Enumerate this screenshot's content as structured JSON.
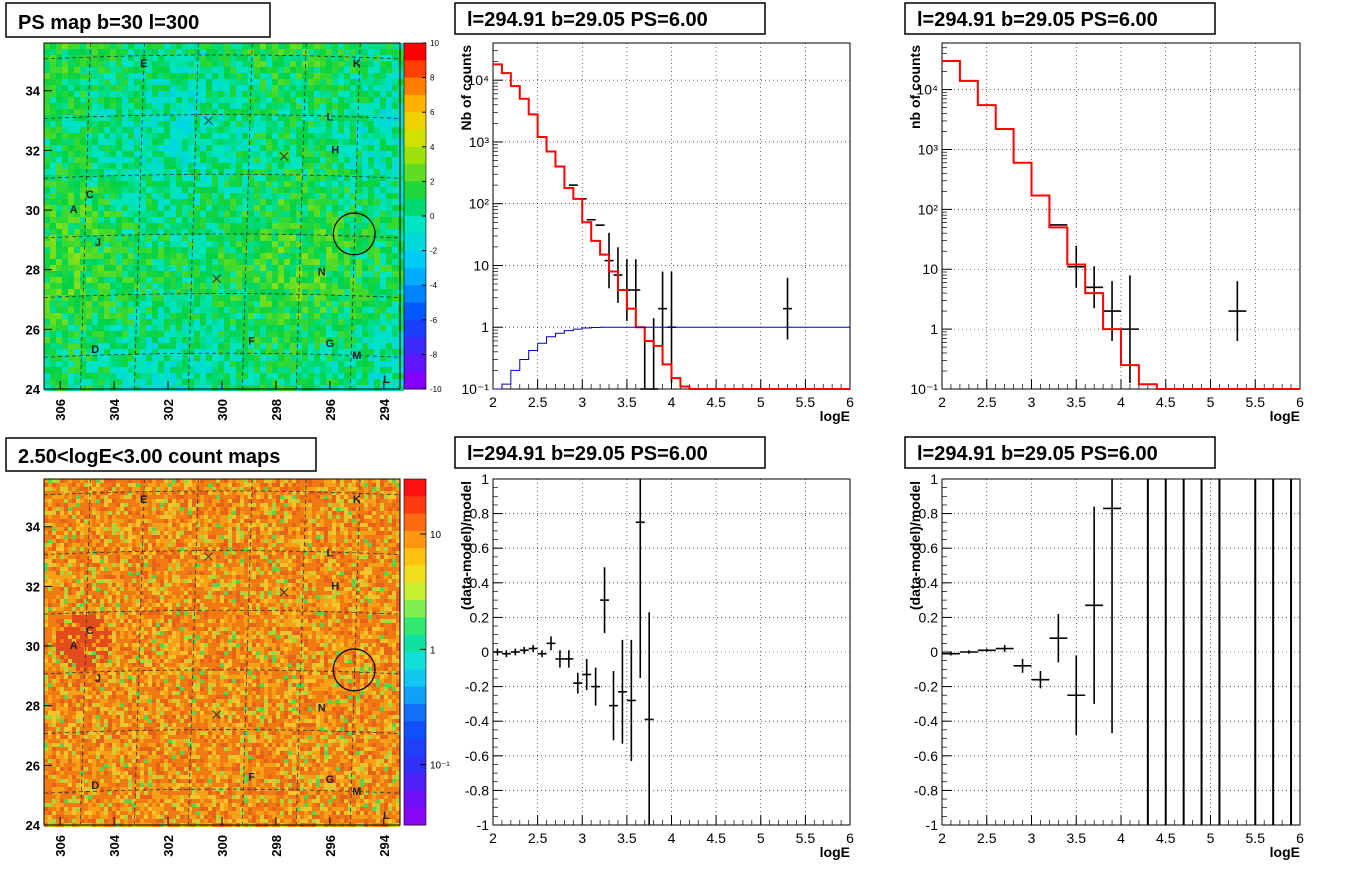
{
  "figure": {
    "background": "#ffffff",
    "colors": {
      "data": "#000000",
      "model": "#ff0000",
      "efficiency": "#0000bb",
      "grid": "#000000",
      "marker_circle": "#000000"
    },
    "icons": [
      "cross-marker-icon",
      "circle-marker-icon"
    ]
  },
  "chart_data": [
    {
      "id": "ps-map",
      "type": "heatmap",
      "title": "PS map b=30 l=300",
      "xlabel": "",
      "ylabel": "",
      "xlim": [
        306.6,
        293.4
      ],
      "ylim": [
        24,
        35.6
      ],
      "x_ticks": [
        306,
        304,
        302,
        300,
        298,
        296,
        294
      ],
      "y_ticks": [
        24,
        26,
        28,
        30,
        32,
        34
      ],
      "grid": true,
      "colorbar": {
        "scale": "linear",
        "range": [
          -10,
          10
        ],
        "ticks": [
          -10,
          -8,
          -6,
          -4,
          -2,
          0,
          2,
          4,
          6,
          8,
          10
        ]
      },
      "base_value": 0.7,
      "labels": [
        {
          "text": "E",
          "l": 302.9,
          "b": 34.8
        },
        {
          "text": "K",
          "l": 295.0,
          "b": 34.8
        },
        {
          "text": "L",
          "l": 296.0,
          "b": 33.0
        },
        {
          "text": "H",
          "l": 295.8,
          "b": 31.9
        },
        {
          "text": "C",
          "l": 304.9,
          "b": 30.4
        },
        {
          "text": "A",
          "l": 305.5,
          "b": 29.9
        },
        {
          "text": "J",
          "l": 304.6,
          "b": 28.8
        },
        {
          "text": "N",
          "l": 296.3,
          "b": 27.8
        },
        {
          "text": "D",
          "l": 304.7,
          "b": 25.2
        },
        {
          "text": "F",
          "l": 298.9,
          "b": 25.5
        },
        {
          "text": "G",
          "l": 296.0,
          "b": 25.4
        },
        {
          "text": "M",
          "l": 295.0,
          "b": 25.0
        },
        {
          "text": "L",
          "l": 293.9,
          "b": 24.2
        }
      ],
      "crosses": [
        {
          "l": 300.5,
          "b": 33.0
        },
        {
          "l": 297.7,
          "b": 31.8
        },
        {
          "l": 300.2,
          "b": 27.7
        }
      ],
      "circle": {
        "l": 295.1,
        "b": 29.2,
        "r": 0.5
      }
    },
    {
      "id": "spectrum-1",
      "type": "line",
      "title": "l=294.91 b=29.05 PS=6.00",
      "xlabel": "logE",
      "ylabel": "Nb of counts",
      "xlim": [
        2,
        6
      ],
      "yscale": "log",
      "ylim": [
        0.1,
        40000
      ],
      "x_ticks": [
        2,
        2.5,
        3,
        3.5,
        4,
        4.5,
        5,
        5.5,
        6
      ],
      "y_ticks": [
        {
          "v": 0.1,
          "t": "10⁻¹"
        },
        {
          "v": 1,
          "t": "1"
        },
        {
          "v": 10,
          "t": "10"
        },
        {
          "v": 100,
          "t": "10²"
        },
        {
          "v": 1000,
          "t": "10³"
        },
        {
          "v": 10000,
          "t": "10⁴"
        }
      ],
      "grid": true,
      "series": [
        {
          "role": "data",
          "x": [
            2.9,
            3.0,
            3.1,
            3.2,
            3.3,
            3.4,
            3.5,
            3.6,
            3.7,
            3.8,
            3.9,
            4.0,
            5.3
          ],
          "y": [
            200,
            120,
            55,
            45,
            12,
            7,
            4,
            4,
            0.1,
            0.1,
            2,
            1,
            2
          ],
          "err": [
            0,
            0,
            0,
            0,
            0.45,
            0.45,
            0.5,
            0.5,
            0,
            0,
            0.6,
            0.9,
            0.5
          ],
          "xerr": [
            0.05,
            0.05,
            0.05,
            0.05,
            0.05,
            0.05,
            0.05,
            0.05,
            0.05,
            0.05,
            0.05,
            0.05,
            0.05
          ]
        },
        {
          "role": "model",
          "edges": [
            2,
            2.1,
            2.2,
            2.3,
            2.4,
            2.5,
            2.6,
            2.7,
            2.8,
            2.9,
            3.0,
            3.1,
            3.2,
            3.3,
            3.4,
            3.5,
            3.6,
            3.7,
            3.8,
            3.9,
            4.0,
            4.1,
            4.2,
            4.3,
            4.4,
            6.0
          ],
          "y": [
            18000,
            13000,
            8000,
            5000,
            2800,
            1200,
            700,
            400,
            180,
            120,
            50,
            25,
            15,
            8,
            4,
            2,
            1,
            0.6,
            0.5,
            0.25,
            0.15,
            0.11,
            0.1,
            0.1,
            0.1
          ]
        },
        {
          "role": "efficiency",
          "edges": [
            2,
            2.1,
            2.2,
            2.3,
            2.4,
            2.5,
            2.6,
            2.7,
            2.8,
            2.9,
            3.0,
            3.1,
            3.2,
            6.0
          ],
          "y": [
            0.1,
            0.12,
            0.2,
            0.3,
            0.42,
            0.55,
            0.7,
            0.8,
            0.88,
            0.93,
            0.97,
            0.99,
            1.0
          ]
        }
      ]
    },
    {
      "id": "spectrum-2",
      "type": "line",
      "title": "l=294.91 b=29.05 PS=6.00",
      "xlabel": "logE",
      "ylabel": "nb of counts",
      "xlim": [
        2,
        6
      ],
      "yscale": "log",
      "ylim": [
        0.1,
        60000
      ],
      "x_ticks": [
        2,
        2.5,
        3,
        3.5,
        4,
        4.5,
        5,
        5.5,
        6
      ],
      "y_ticks": [
        {
          "v": 0.1,
          "t": "10⁻¹"
        },
        {
          "v": 1,
          "t": "1"
        },
        {
          "v": 10,
          "t": "10"
        },
        {
          "v": 100,
          "t": "10²"
        },
        {
          "v": 1000,
          "t": "10³"
        },
        {
          "v": 10000,
          "t": "10⁴"
        }
      ],
      "grid": true,
      "series": [
        {
          "role": "data",
          "x": [
            2.9,
            3.1,
            3.3,
            3.5,
            3.7,
            3.9,
            4.1,
            5.3
          ],
          "y": [
            600,
            170,
            55,
            11,
            5,
            2,
            1,
            2
          ],
          "err": [
            0,
            0,
            0,
            0.35,
            0.35,
            0.5,
            0.9,
            0.5
          ],
          "xerr": [
            0.1,
            0.1,
            0.1,
            0.1,
            0.1,
            0.1,
            0.1,
            0.1
          ]
        },
        {
          "role": "model",
          "edges": [
            2,
            2.2,
            2.4,
            2.6,
            2.8,
            3.0,
            3.2,
            3.4,
            3.6,
            3.8,
            4.0,
            4.2,
            4.4,
            6.0
          ],
          "y": [
            30000,
            14000,
            5500,
            2200,
            600,
            170,
            50,
            12,
            4,
            1,
            0.25,
            0.12,
            0.1
          ]
        }
      ]
    },
    {
      "id": "count-map",
      "type": "heatmap",
      "title": "2.50<logE<3.00 count maps",
      "xlabel": "",
      "ylabel": "",
      "xlim": [
        306.6,
        293.4
      ],
      "ylim": [
        24,
        35.6
      ],
      "x_ticks": [
        306,
        304,
        302,
        300,
        298,
        296,
        294
      ],
      "y_ticks": [
        24,
        26,
        28,
        30,
        32,
        34
      ],
      "grid": true,
      "colorbar": {
        "scale": "log",
        "range": [
          0.03,
          30
        ],
        "ticks": [
          {
            "v": 10,
            "t": "10"
          },
          {
            "v": 1,
            "t": "1"
          },
          {
            "v": 0.1,
            "t": "10⁻¹"
          }
        ]
      },
      "labels": [
        {
          "text": "E",
          "l": 302.9,
          "b": 34.8
        },
        {
          "text": "K",
          "l": 295.0,
          "b": 34.8
        },
        {
          "text": "L",
          "l": 296.0,
          "b": 33.0
        },
        {
          "text": "H",
          "l": 295.8,
          "b": 31.9
        },
        {
          "text": "C",
          "l": 304.9,
          "b": 30.4
        },
        {
          "text": "A",
          "l": 305.5,
          "b": 29.9
        },
        {
          "text": "J",
          "l": 304.6,
          "b": 28.8
        },
        {
          "text": "N",
          "l": 296.3,
          "b": 27.8
        },
        {
          "text": "D",
          "l": 304.7,
          "b": 25.2
        },
        {
          "text": "F",
          "l": 298.9,
          "b": 25.5
        },
        {
          "text": "G",
          "l": 296.0,
          "b": 25.4
        },
        {
          "text": "M",
          "l": 295.0,
          "b": 25.0
        },
        {
          "text": "L",
          "l": 293.9,
          "b": 24.2
        }
      ],
      "crosses": [
        {
          "l": 300.5,
          "b": 33.0
        },
        {
          "l": 297.7,
          "b": 31.8
        },
        {
          "l": 300.2,
          "b": 27.7
        }
      ],
      "circle": {
        "l": 295.1,
        "b": 29.2,
        "r": 0.5
      }
    },
    {
      "id": "residual-1",
      "type": "scatter",
      "title": "l=294.91 b=29.05 PS=6.00",
      "xlabel": "logE",
      "ylabel": "(data-model)/model",
      "xlim": [
        2,
        6
      ],
      "ylim": [
        -1,
        1
      ],
      "x_ticks": [
        2,
        2.5,
        3,
        3.5,
        4,
        4.5,
        5,
        5.5,
        6
      ],
      "y_ticks": [
        -1,
        -0.8,
        -0.6,
        -0.4,
        -0.2,
        0,
        0.2,
        0.4,
        0.6,
        0.8,
        1
      ],
      "grid": true,
      "series": [
        {
          "role": "data",
          "x": [
            2.05,
            2.15,
            2.25,
            2.35,
            2.45,
            2.55,
            2.65,
            2.75,
            2.85,
            2.95,
            3.05,
            3.15,
            3.25,
            3.35,
            3.45,
            3.55,
            3.65,
            3.75
          ],
          "y": [
            0,
            -0.01,
            0,
            0.01,
            0.02,
            -0.01,
            0.05,
            -0.04,
            -0.04,
            -0.18,
            -0.13,
            -0.2,
            0.3,
            -0.31,
            -0.23,
            -0.28,
            0.75,
            -0.39
          ],
          "err": [
            0.02,
            0.02,
            0.02,
            0.02,
            0.02,
            0.02,
            0.04,
            0.05,
            0.05,
            0.06,
            0.09,
            0.11,
            0.19,
            0.2,
            0.3,
            0.35,
            0.9,
            0.62
          ],
          "xerr": [
            0.05,
            0.05,
            0.05,
            0.05,
            0.05,
            0.05,
            0.05,
            0.05,
            0.05,
            0.05,
            0.05,
            0.05,
            0.05,
            0.05,
            0.05,
            0.05,
            0.05,
            0.05
          ]
        }
      ]
    },
    {
      "id": "residual-2",
      "type": "scatter",
      "title": "l=294.91 b=29.05 PS=6.00",
      "xlabel": "logE",
      "ylabel": "(data-model)/model",
      "xlim": [
        2,
        6
      ],
      "ylim": [
        -1,
        1
      ],
      "x_ticks": [
        2,
        2.5,
        3,
        3.5,
        4,
        4.5,
        5,
        5.5,
        6
      ],
      "y_ticks": [
        -1,
        -0.8,
        -0.6,
        -0.4,
        -0.2,
        0,
        0.2,
        0.4,
        0.6,
        0.8,
        1
      ],
      "grid": true,
      "series": [
        {
          "role": "data",
          "x": [
            2.1,
            2.3,
            2.5,
            2.7,
            2.9,
            3.1,
            3.3,
            3.5,
            3.7,
            3.9
          ],
          "y": [
            -0.01,
            0,
            0.01,
            0.02,
            -0.08,
            -0.16,
            0.08,
            -0.25,
            0.27,
            0.83
          ],
          "err": [
            0.01,
            0.01,
            0.01,
            0.02,
            0.04,
            0.05,
            0.14,
            0.23,
            0.57,
            1.3
          ],
          "xerr": [
            0.1,
            0.1,
            0.1,
            0.1,
            0.1,
            0.1,
            0.1,
            0.1,
            0.1,
            0.1
          ]
        },
        {
          "role": "vertical-lines",
          "x": [
            4.3,
            4.5,
            4.7,
            4.9,
            5.1,
            5.5,
            5.7,
            5.9
          ]
        }
      ]
    }
  ]
}
